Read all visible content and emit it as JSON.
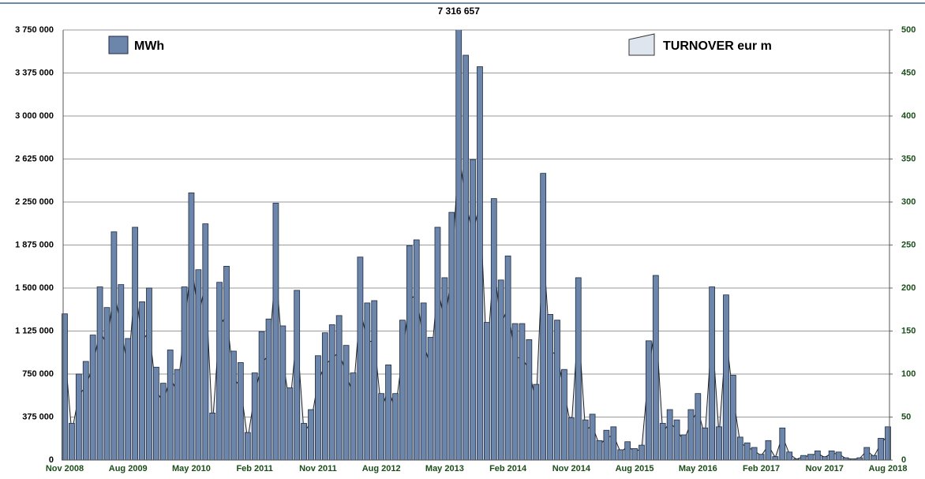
{
  "chart_data": {
    "type": "bar_area",
    "categories": [
      "Nov 2008",
      null,
      null,
      null,
      null,
      null,
      null,
      null,
      null,
      "Aug 2009",
      null,
      null,
      null,
      null,
      null,
      null,
      null,
      null,
      "May 2010",
      null,
      null,
      null,
      null,
      null,
      null,
      null,
      null,
      "Feb 2011",
      null,
      null,
      null,
      null,
      null,
      null,
      null,
      null,
      "Nov 2011",
      null,
      null,
      null,
      null,
      null,
      null,
      null,
      null,
      "Aug 2012",
      null,
      null,
      null,
      null,
      null,
      null,
      null,
      null,
      "May 2013",
      null,
      null,
      null,
      null,
      null,
      null,
      null,
      null,
      "Feb 2014",
      null,
      null,
      null,
      null,
      null,
      null,
      null,
      null,
      "Nov 2014",
      null,
      null,
      null,
      null,
      null,
      null,
      null,
      null,
      "Aug 2015",
      null,
      null,
      null,
      null,
      null,
      null,
      null,
      null,
      "May 2016",
      null,
      null,
      null,
      null,
      null,
      null,
      null,
      null,
      "Feb 2017",
      null,
      null,
      null,
      null,
      null,
      null,
      null,
      null,
      "Nov 2017",
      null,
      null,
      null,
      null,
      null,
      null,
      null,
      null,
      "Aug 2018"
    ],
    "series": [
      {
        "name": "MWh",
        "color": "#6c85aa",
        "values": [
          1275000,
          320000,
          750000,
          860000,
          1090000,
          1510000,
          1330000,
          1990000,
          1530000,
          1060000,
          2030000,
          1380000,
          1500000,
          810000,
          670000,
          960000,
          790000,
          1510000,
          2330000,
          1660000,
          2060000,
          410000,
          1550000,
          1690000,
          950000,
          850000,
          240000,
          760000,
          1120000,
          1230000,
          2240000,
          1170000,
          630000,
          1480000,
          320000,
          440000,
          910000,
          1110000,
          1180000,
          1260000,
          1000000,
          760000,
          1770000,
          1370000,
          1390000,
          580000,
          830000,
          580000,
          1220000,
          1870000,
          1920000,
          1370000,
          1070000,
          2030000,
          1590000,
          2160000,
          7316657,
          3530000,
          2620000,
          3430000,
          1200000,
          2280000,
          1570000,
          1780000,
          1190000,
          1190000,
          1050000,
          660000,
          2500000,
          1270000,
          1220000,
          790000,
          370000,
          1590000,
          350000,
          400000,
          170000,
          260000,
          290000,
          90000,
          160000,
          100000,
          130000,
          1040000,
          1610000,
          320000,
          440000,
          350000,
          220000,
          440000,
          580000,
          280000,
          1510000,
          290000,
          1440000,
          740000,
          200000,
          150000,
          110000,
          50000,
          170000,
          30000,
          280000,
          70000,
          10000,
          40000,
          50000,
          80000,
          30000,
          80000,
          70000,
          20000,
          10000,
          20000,
          110000,
          40000,
          190000,
          290000
        ],
        "value_labels": [
          null,
          null,
          null,
          null,
          null,
          null,
          null,
          null,
          null,
          null,
          null,
          null,
          null,
          null,
          null,
          null,
          null,
          null,
          null,
          null,
          null,
          null,
          null,
          null,
          null,
          null,
          null,
          null,
          null,
          null,
          null,
          null,
          null,
          null,
          null,
          null,
          null,
          null,
          null,
          null,
          null,
          null,
          null,
          null,
          null,
          null,
          null,
          null,
          null,
          null,
          null,
          null,
          null,
          null,
          null,
          null,
          "7 316 657",
          null,
          null,
          null,
          null,
          null,
          null,
          null,
          null,
          null,
          null,
          null,
          null,
          null,
          null,
          null,
          null,
          null,
          null,
          null,
          null,
          null,
          null,
          null,
          null,
          null,
          null,
          null,
          null,
          null,
          null,
          null,
          null,
          null,
          null,
          null,
          null,
          null,
          null,
          null,
          null,
          null,
          null,
          null,
          null,
          null,
          null,
          null,
          null,
          null,
          null,
          null,
          null,
          null,
          null,
          null,
          null,
          null,
          null,
          null,
          null,
          null
        ]
      },
      {
        "name": "TURNOVER eur m",
        "color": "#dfe5ee",
        "axis": "y2",
        "values": [
          128,
          32,
          75,
          86,
          109,
          151,
          133,
          199,
          153,
          106,
          203,
          138,
          150,
          81,
          67,
          96,
          79,
          151,
          233,
          166,
          206,
          41,
          155,
          169,
          95,
          85,
          24,
          76,
          112,
          123,
          224,
          117,
          63,
          148,
          32,
          44,
          91,
          111,
          118,
          126,
          100,
          76,
          177,
          137,
          139,
          58,
          83,
          58,
          122,
          187,
          192,
          137,
          107,
          203,
          159,
          216,
          360,
          300,
          262,
          300,
          120,
          228,
          157,
          178,
          119,
          119,
          105,
          66,
          250,
          127,
          122,
          79,
          37,
          159,
          35,
          40,
          17,
          26,
          29,
          9,
          16,
          10,
          13,
          104,
          161,
          32,
          44,
          35,
          22,
          44,
          58,
          28,
          151,
          29,
          144,
          74,
          20,
          15,
          11,
          5,
          17,
          3,
          28,
          7,
          1,
          4,
          5,
          8,
          3,
          8,
          7,
          2,
          1,
          2,
          11,
          4,
          19,
          29
        ]
      }
    ],
    "ylim": [
      0,
      3750000
    ],
    "yticks": [
      0,
      {
        "value": 375000,
        "label": "375 000"
      },
      {
        "value": 750000,
        "label": "750 000"
      },
      {
        "value": 1125000,
        "label": "1 125 000"
      },
      {
        "value": 1500000,
        "label": "1 500 000"
      },
      {
        "value": 1875000,
        "label": "1 875 000"
      },
      {
        "value": 2250000,
        "label": "2 250 000"
      },
      {
        "value": 2625000,
        "label": "2 625 000"
      },
      {
        "value": 3000000,
        "label": "3 000 000"
      },
      {
        "value": 3375000,
        "label": "3 375 000"
      },
      {
        "value": 3750000,
        "label": "3 750 000"
      }
    ],
    "y2lim": [
      0,
      500
    ],
    "y2ticks": [
      0,
      50,
      100,
      150,
      200,
      250,
      300,
      350,
      400,
      450,
      500
    ],
    "grid": true
  }
}
